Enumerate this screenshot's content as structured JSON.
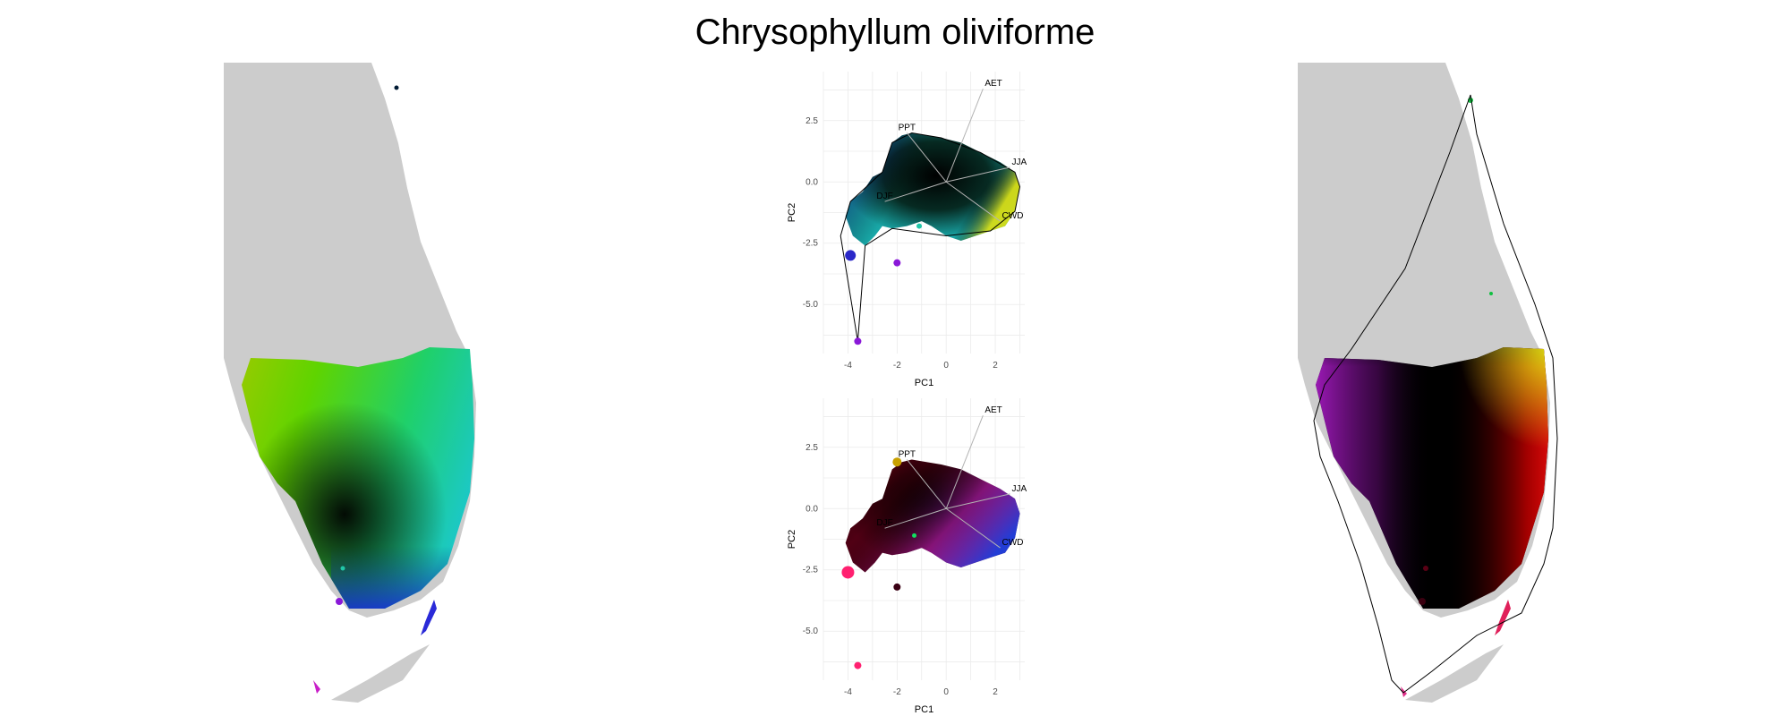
{
  "title": "Chrysophyllum oliviforme",
  "colors": {
    "land": "#cccccc",
    "panel_bg": "#ffffff",
    "grid": "#ebebeb",
    "outline": "#000000",
    "arrow": "#b3b3b3"
  },
  "chart_data": [
    {
      "type": "map",
      "panel": "left",
      "fill": "geographic colour ramp (yellow-green-cyan-blue)"
    },
    {
      "type": "scatter",
      "panel": "biplot-top",
      "xlabel": "PC1",
      "ylabel": "PC2",
      "xticks": [
        -4,
        -2,
        0,
        2
      ],
      "yticks": [
        2.5,
        0.0,
        -2.5,
        -5.0
      ],
      "xlim": [
        -5,
        3.2
      ],
      "ylim": [
        -7,
        4.5
      ],
      "grid": true,
      "loadings": [
        {
          "label": "AET",
          "x": 1.5,
          "y": 3.8
        },
        {
          "label": "PPT",
          "x": -1.6,
          "y": 2.0
        },
        {
          "label": "JJA",
          "x": 2.6,
          "y": 0.6
        },
        {
          "label": "DJF",
          "x": -2.5,
          "y": -0.8
        },
        {
          "label": "CWD",
          "x": 2.2,
          "y": -1.6
        }
      ]
    },
    {
      "type": "scatter",
      "panel": "biplot-bottom",
      "xlabel": "PC1",
      "ylabel": "PC2",
      "xticks": [
        -4,
        -2,
        0,
        2
      ],
      "yticks": [
        2.5,
        0.0,
        -2.5,
        -5.0
      ],
      "xlim": [
        -5,
        3.2
      ],
      "ylim": [
        -7,
        4.5
      ],
      "grid": true,
      "loadings": [
        {
          "label": "AET",
          "x": 1.5,
          "y": 3.8
        },
        {
          "label": "PPT",
          "x": -1.6,
          "y": 2.0
        },
        {
          "label": "JJA",
          "x": 2.6,
          "y": 0.6
        },
        {
          "label": "DJF",
          "x": -2.5,
          "y": -0.8
        },
        {
          "label": "CWD",
          "x": 2.2,
          "y": -1.6
        }
      ]
    },
    {
      "type": "map",
      "panel": "right",
      "fill": "environmental colour ramp (black-red-magenta-blue)"
    }
  ]
}
